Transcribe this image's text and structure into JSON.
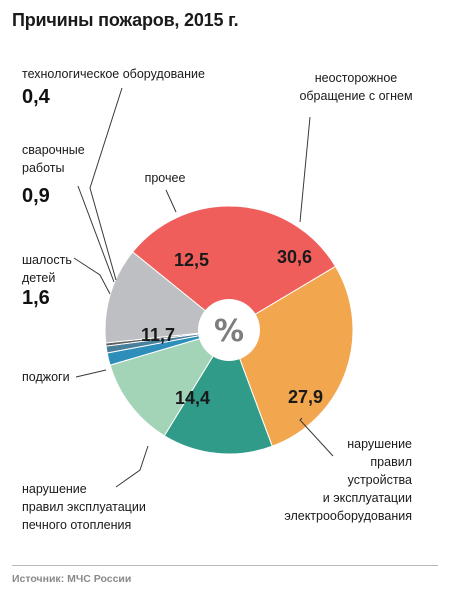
{
  "chart_data": {
    "type": "pie",
    "title": "Причины пожаров, 2015 г.",
    "center_label": "%",
    "source": "Источник: МЧС России",
    "slices": [
      {
        "id": "careless",
        "label": [
          "неосторожное",
          "обращение с огнем"
        ],
        "value": 30.6,
        "value_text": "30,6",
        "color": "#ef5e5a"
      },
      {
        "id": "electrical",
        "label": [
          "нарушение",
          "правил",
          "устройства",
          "и эксплуатации",
          "электрооборудования"
        ],
        "value": 27.9,
        "value_text": "27,9",
        "color": "#f2a64e"
      },
      {
        "id": "stove",
        "label": [
          "нарушение",
          "правил эксплуатации",
          "печного отопления"
        ],
        "value": 14.4,
        "value_text": "14,4",
        "color": "#2f9b88"
      },
      {
        "id": "arson",
        "label": [
          "поджоги"
        ],
        "value": 11.7,
        "value_text": "11,7",
        "color": "#a4d4b8"
      },
      {
        "id": "children",
        "label": [
          "шалость",
          "детей"
        ],
        "value": 1.6,
        "value_text": "1,6",
        "color": "#2d8fb9"
      },
      {
        "id": "welding",
        "label": [
          "сварочные",
          "работы"
        ],
        "value": 0.9,
        "value_text": "0,9",
        "color": "#4a7f9c"
      },
      {
        "id": "tech",
        "label": [
          "технологическое оборудование"
        ],
        "value": 0.4,
        "value_text": "0,4",
        "color": "#5e5e5e"
      },
      {
        "id": "other",
        "label": [
          "прочее"
        ],
        "value": 12.5,
        "value_text": "12,5",
        "color": "#bdbfc2"
      }
    ]
  }
}
